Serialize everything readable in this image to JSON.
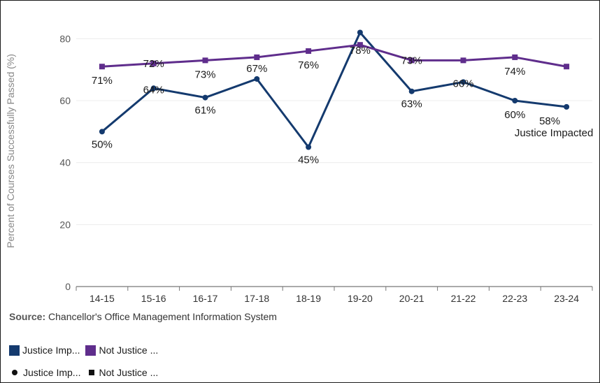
{
  "chart_data": {
    "type": "line",
    "title": "",
    "xlabel": "",
    "ylabel": "Percent of Courses Successfully Passed (%)",
    "categories": [
      "14-15",
      "15-16",
      "16-17",
      "17-18",
      "18-19",
      "19-20",
      "20-21",
      "21-22",
      "22-23",
      "23-24"
    ],
    "ylim": [
      0,
      90
    ],
    "yticks": [
      0,
      20,
      40,
      60,
      80
    ],
    "grid": true,
    "series": [
      {
        "name": "Justice Impacted",
        "color": "#143a6e",
        "marker": "circle",
        "values": [
          50,
          64,
          61,
          67,
          45,
          82,
          63,
          66,
          60,
          58
        ],
        "labels": [
          "50%",
          "64%",
          "61%",
          "67%",
          "45%",
          "",
          "63%",
          "66%",
          "60%",
          "58%"
        ],
        "end_label": "Justice Impacted"
      },
      {
        "name": "Not Justice Impacted",
        "color": "#5f2d8c",
        "marker": "square",
        "values": [
          71,
          72,
          73,
          74,
          76,
          78,
          73,
          73,
          74,
          71
        ],
        "labels": [
          "71%",
          "72%",
          "73%",
          "",
          "76%",
          "78%",
          "73%",
          "",
          "74%",
          ""
        ]
      }
    ],
    "legend_position": "bottom-left"
  },
  "source": {
    "prefix": "Source:",
    "text": "Chancellor's Office Management Information System"
  },
  "legend": {
    "color_items": [
      {
        "label": "Justice Imp...",
        "color": "#143a6e"
      },
      {
        "label": "Not Justice ...",
        "color": "#5f2d8c"
      }
    ],
    "shape_items": [
      {
        "label": "Justice Imp...",
        "shape": "circle"
      },
      {
        "label": "Not Justice ...",
        "shape": "square"
      }
    ]
  }
}
